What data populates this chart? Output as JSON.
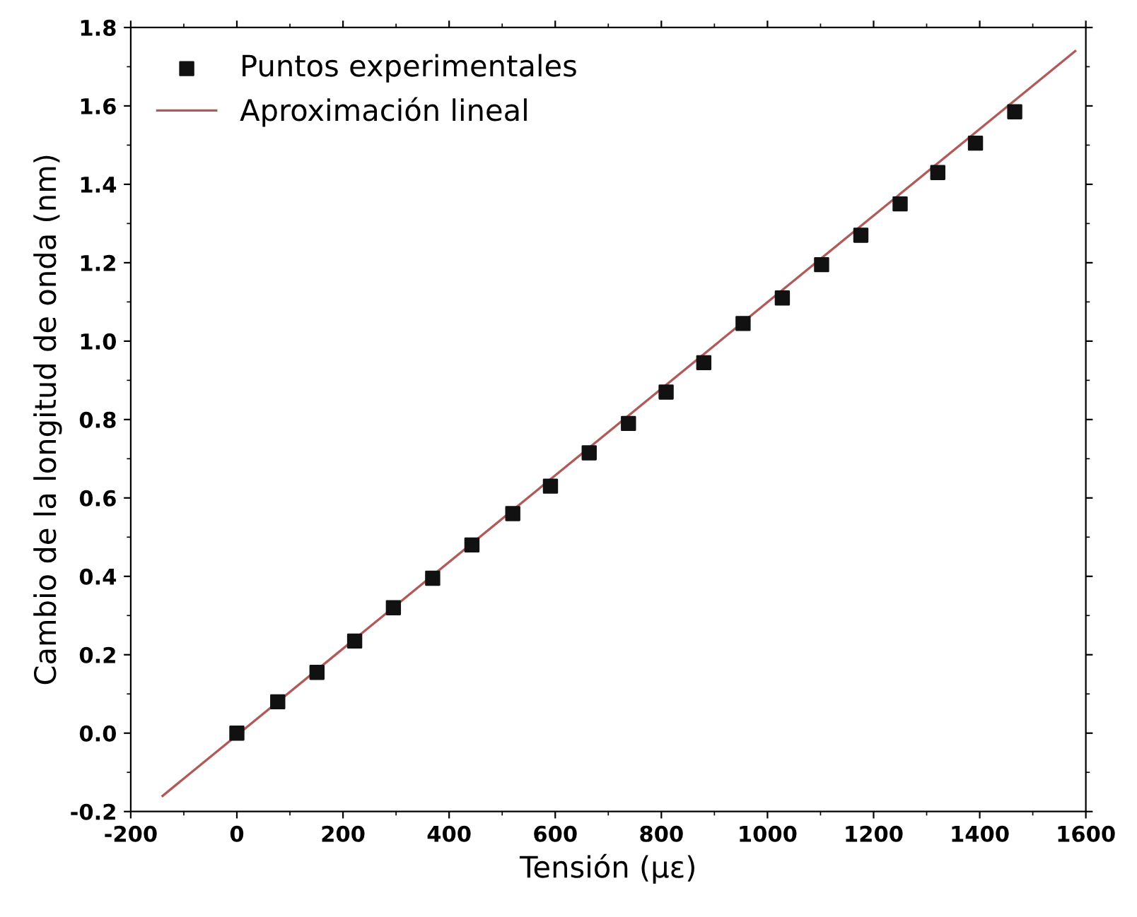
{
  "chart_data": {
    "type": "scatter",
    "xlabel": "Tensión (με)",
    "ylabel": "Cambio de la longitud de onda (nm)",
    "xlim": [
      -200,
      1600
    ],
    "xticks": [
      -200,
      0,
      200,
      400,
      600,
      800,
      1000,
      1200,
      1400,
      1600
    ],
    "ylim": [
      -0.2,
      1.8
    ],
    "yticks": [
      {
        "value": -0.2,
        "label": "-0.2"
      },
      {
        "value": 0.0,
        "label": "0.0"
      },
      0.2,
      0.4,
      0.6,
      0.8,
      {
        "value": 1.0,
        "label": "1.0"
      },
      1.2,
      1.4,
      1.6,
      1.8
    ],
    "legend": "top left",
    "grid": false,
    "series": [
      {
        "name": "Puntos experimentales",
        "marker": "square",
        "color": "#111111",
        "x": [
          0,
          77,
          151,
          222,
          295,
          369,
          443,
          520,
          591,
          664,
          738,
          809,
          880,
          954,
          1028,
          1102,
          1176,
          1250,
          1321,
          1392,
          1466
        ],
        "values": [
          0.0,
          0.08,
          0.155,
          0.235,
          0.32,
          0.395,
          0.48,
          0.56,
          0.63,
          0.715,
          0.79,
          0.87,
          0.945,
          1.045,
          1.11,
          1.195,
          1.27,
          1.35,
          1.43,
          1.505,
          1.585
        ]
      },
      {
        "name": "Aproximación lineal",
        "type": "line",
        "marker": "none",
        "line_style": "solid",
        "color": "#b05a5a",
        "x": [
          -140,
          1580
        ],
        "values": [
          -0.16,
          1.74
        ]
      }
    ]
  }
}
